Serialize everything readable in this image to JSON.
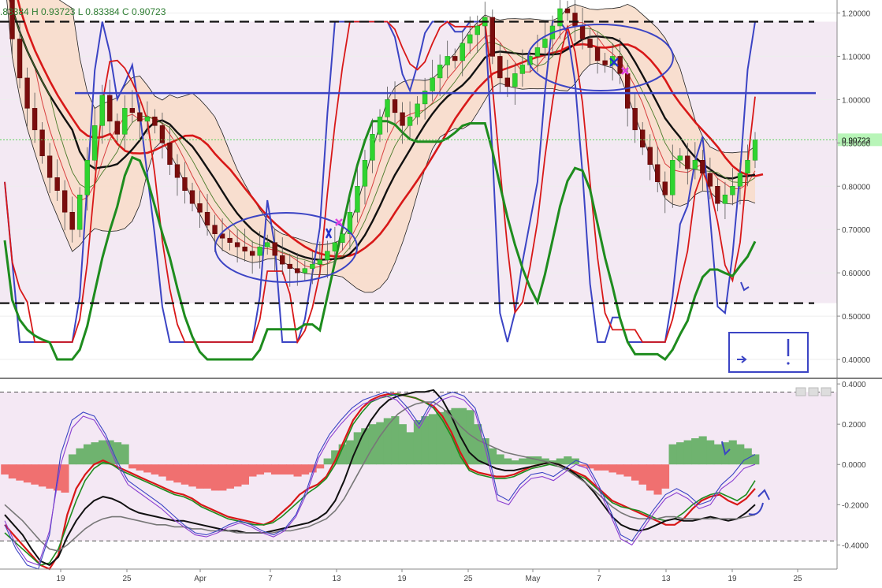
{
  "colors": {
    "up": "#2fd42f",
    "down": "#7a0d0d",
    "band_fill": "#f8dcc8",
    "bg_shade": "#f3e9f3",
    "osc_bg": "#f4e8f4",
    "hist_pos": "#6fb36f",
    "hist_neg": "#f07070",
    "blue_line": "#3b44c4",
    "red_line": "#d81818",
    "green_line": "#1e8c1e",
    "black_line": "#111111",
    "last_price_box": "#b8f5b8",
    "annotation": "#3b44c4"
  },
  "header": {
    "ohlc_text": ".83384  H 0.93723  L 0.83384  C 0.90723"
  },
  "chart_data": [
    {
      "type": "candlestick",
      "title": "",
      "y_range": [
        0.36,
        1.23
      ],
      "y_ticks": [
        "1.20000",
        "1.10000",
        "1.00000",
        "0.90000",
        "0.80000",
        "0.70000",
        "0.60000",
        "0.50000",
        "0.40000"
      ],
      "x_tick_labels": [
        "19",
        "25",
        "Apr",
        "7",
        "13",
        "19",
        "25",
        "May",
        "7",
        "13",
        "19",
        "25"
      ],
      "last_price": 0.90723,
      "last_price_label": "0.90723",
      "horizontal_levels": [
        {
          "style": "dashed",
          "value": 1.18
        },
        {
          "style": "dashed",
          "value": 0.53
        },
        {
          "style": "solid",
          "value": 1.015
        }
      ],
      "closes": [
        1.28,
        1.14,
        1.05,
        0.98,
        0.93,
        0.87,
        0.82,
        0.79,
        0.74,
        0.7,
        0.78,
        0.86,
        0.94,
        1.01,
        0.95,
        0.92,
        0.98,
        0.97,
        0.95,
        0.96,
        0.94,
        0.9,
        0.85,
        0.82,
        0.79,
        0.76,
        0.74,
        0.71,
        0.69,
        0.68,
        0.67,
        0.66,
        0.65,
        0.64,
        0.66,
        0.67,
        0.64,
        0.62,
        0.61,
        0.6,
        0.61,
        0.62,
        0.63,
        0.65,
        0.67,
        0.69,
        0.74,
        0.8,
        0.86,
        0.92,
        0.96,
        1.0,
        0.97,
        0.94,
        0.96,
        0.99,
        1.02,
        1.05,
        1.08,
        1.1,
        1.09,
        1.13,
        1.15,
        1.17,
        1.19,
        1.1,
        1.05,
        1.03,
        1.06,
        1.08,
        1.1,
        1.12,
        1.14,
        1.17,
        1.21,
        1.2,
        1.17,
        1.14,
        1.12,
        1.09,
        1.08,
        1.1,
        1.06,
        0.98,
        0.93,
        0.89,
        0.85,
        0.81,
        0.78,
        0.86,
        0.87,
        0.84,
        0.86,
        0.83,
        0.8,
        0.76,
        0.78,
        0.8,
        0.83,
        0.86,
        0.90723
      ]
    },
    {
      "type": "oscillator",
      "title": "",
      "y_range": [
        -0.52,
        0.42
      ],
      "y_ticks": [
        "0.4000",
        "0.2000",
        "0.0000",
        "-0.2000",
        "-0.4000"
      ],
      "dashed_levels": [
        0.36,
        -0.38
      ],
      "histogram": [
        -0.05,
        -0.07,
        -0.08,
        -0.09,
        -0.1,
        -0.11,
        -0.12,
        -0.13,
        -0.14,
        0.05,
        0.08,
        0.1,
        0.11,
        0.12,
        0.12,
        0.11,
        0.1,
        -0.02,
        -0.03,
        -0.04,
        -0.05,
        -0.06,
        -0.08,
        -0.09,
        -0.1,
        -0.11,
        -0.12,
        -0.12,
        -0.13,
        -0.13,
        -0.12,
        -0.11,
        -0.1,
        -0.06,
        -0.05,
        -0.04,
        -0.05,
        -0.05,
        -0.05,
        -0.06,
        -0.05,
        -0.04,
        -0.02,
        0.03,
        0.07,
        0.1,
        0.12,
        0.16,
        0.18,
        0.2,
        0.21,
        0.23,
        0.24,
        0.2,
        0.16,
        0.22,
        0.24,
        0.25,
        0.26,
        0.27,
        0.28,
        0.28,
        0.27,
        0.2,
        0.13,
        0.08,
        0.05,
        0.03,
        0.02,
        0.03,
        0.04,
        0.04,
        0.03,
        0.02,
        0.03,
        0.04,
        0.03,
        -0.01,
        -0.02,
        -0.03,
        -0.03,
        -0.04,
        -0.05,
        -0.06,
        -0.08,
        -0.1,
        -0.13,
        -0.15,
        -0.12,
        0.1,
        0.11,
        0.12,
        0.13,
        0.14,
        0.12,
        0.1,
        0.11,
        0.12,
        0.1,
        0.08,
        0.05
      ],
      "series": [
        {
          "color": "#d81818",
          "width": 2.2,
          "values": [
            -0.3,
            -0.35,
            -0.4,
            -0.45,
            -0.5,
            -0.52,
            -0.45,
            -0.25,
            -0.12,
            -0.05,
            0.0,
            0.02,
            0.0,
            -0.02,
            -0.04,
            -0.06,
            -0.08,
            -0.1,
            -0.12,
            -0.14,
            -0.15,
            -0.17,
            -0.2,
            -0.22,
            -0.24,
            -0.26,
            -0.27,
            -0.28,
            -0.29,
            -0.3,
            -0.28,
            -0.24,
            -0.2,
            -0.15,
            -0.12,
            -0.1,
            -0.06,
            0.02,
            0.12,
            0.22,
            0.28,
            0.32,
            0.34,
            0.35,
            0.35,
            0.34,
            0.33,
            0.31,
            0.29,
            0.24,
            0.16,
            0.06,
            -0.02,
            -0.04,
            -0.05,
            -0.06,
            -0.06,
            -0.05,
            -0.03,
            -0.01,
            0.0,
            0.01,
            0.0,
            -0.02,
            -0.04,
            -0.06,
            -0.1,
            -0.14,
            -0.18,
            -0.2,
            -0.22,
            -0.24,
            -0.26,
            -0.28,
            -0.3,
            -0.3,
            -0.27,
            -0.22,
            -0.18,
            -0.16,
            -0.15,
            -0.18,
            -0.2,
            -0.17,
            -0.12
          ]
        },
        {
          "color": "#1e8c1e",
          "width": 1.6,
          "values": [
            -0.34,
            -0.38,
            -0.42,
            -0.46,
            -0.5,
            -0.49,
            -0.42,
            -0.3,
            -0.18,
            -0.08,
            -0.02,
            0.01,
            0.0,
            -0.03,
            -0.05,
            -0.07,
            -0.09,
            -0.11,
            -0.13,
            -0.15,
            -0.16,
            -0.18,
            -0.21,
            -0.23,
            -0.25,
            -0.27,
            -0.28,
            -0.29,
            -0.3,
            -0.3,
            -0.29,
            -0.26,
            -0.22,
            -0.18,
            -0.14,
            -0.11,
            -0.07,
            0.0,
            0.1,
            0.2,
            0.26,
            0.31,
            0.33,
            0.34,
            0.35,
            0.34,
            0.33,
            0.31,
            0.28,
            0.22,
            0.14,
            0.04,
            -0.03,
            -0.05,
            -0.06,
            -0.07,
            -0.07,
            -0.06,
            -0.04,
            -0.02,
            -0.01,
            0.0,
            -0.01,
            -0.03,
            -0.05,
            -0.07,
            -0.11,
            -0.15,
            -0.19,
            -0.21,
            -0.22,
            -0.23,
            -0.25,
            -0.27,
            -0.28,
            -0.27,
            -0.24,
            -0.2,
            -0.17,
            -0.15,
            -0.14,
            -0.16,
            -0.18,
            -0.15,
            -0.08
          ]
        },
        {
          "color": "#111111",
          "width": 2.0,
          "values": [
            -0.25,
            -0.3,
            -0.35,
            -0.42,
            -0.48,
            -0.5,
            -0.46,
            -0.36,
            -0.28,
            -0.22,
            -0.18,
            -0.16,
            -0.17,
            -0.19,
            -0.22,
            -0.24,
            -0.25,
            -0.26,
            -0.27,
            -0.28,
            -0.28,
            -0.29,
            -0.3,
            -0.31,
            -0.32,
            -0.33,
            -0.33,
            -0.34,
            -0.34,
            -0.34,
            -0.33,
            -0.32,
            -0.31,
            -0.3,
            -0.29,
            -0.27,
            -0.24,
            -0.18,
            -0.08,
            0.04,
            0.14,
            0.22,
            0.28,
            0.32,
            0.34,
            0.35,
            0.36,
            0.36,
            0.37,
            0.32,
            0.24,
            0.14,
            0.06,
            0.02,
            0.0,
            -0.02,
            -0.03,
            -0.03,
            -0.02,
            -0.01,
            0.0,
            0.01,
            0.0,
            -0.02,
            -0.05,
            -0.09,
            -0.14,
            -0.2,
            -0.26,
            -0.3,
            -0.32,
            -0.33,
            -0.32,
            -0.3,
            -0.28,
            -0.27,
            -0.28,
            -0.28,
            -0.27,
            -0.26,
            -0.27,
            -0.28,
            -0.27,
            -0.24,
            -0.2
          ]
        },
        {
          "color": "#777777",
          "width": 1.6,
          "values": [
            -0.2,
            -0.24,
            -0.28,
            -0.33,
            -0.38,
            -0.42,
            -0.43,
            -0.4,
            -0.36,
            -0.32,
            -0.29,
            -0.27,
            -0.26,
            -0.26,
            -0.27,
            -0.28,
            -0.29,
            -0.3,
            -0.3,
            -0.31,
            -0.31,
            -0.32,
            -0.32,
            -0.33,
            -0.33,
            -0.33,
            -0.34,
            -0.34,
            -0.34,
            -0.34,
            -0.34,
            -0.33,
            -0.33,
            -0.32,
            -0.31,
            -0.29,
            -0.27,
            -0.23,
            -0.17,
            -0.09,
            -0.01,
            0.07,
            0.14,
            0.2,
            0.25,
            0.28,
            0.3,
            0.31,
            0.31,
            0.28,
            0.24,
            0.19,
            0.15,
            0.12,
            0.1,
            0.08,
            0.06,
            0.05,
            0.04,
            0.03,
            0.02,
            0.01,
            -0.01,
            -0.03,
            -0.06,
            -0.09,
            -0.13,
            -0.17,
            -0.21,
            -0.24,
            -0.26,
            -0.27,
            -0.27,
            -0.27,
            -0.26,
            -0.26,
            -0.27,
            -0.27,
            -0.27,
            -0.27,
            -0.27,
            -0.27,
            -0.27,
            -0.26,
            -0.25
          ]
        },
        {
          "color": "#3b44c4",
          "width": 1.1,
          "values": [
            -0.3,
            -0.42,
            -0.5,
            -0.52,
            -0.35,
            0.05,
            0.22,
            0.26,
            0.24,
            0.15,
            0.02,
            -0.08,
            -0.12,
            -0.16,
            -0.2,
            -0.25,
            -0.3,
            -0.34,
            -0.35,
            -0.33,
            -0.3,
            -0.28,
            -0.3,
            -0.33,
            -0.35,
            -0.32,
            -0.25,
            -0.12,
            0.05,
            0.15,
            0.22,
            0.28,
            0.32,
            0.34,
            0.36,
            0.34,
            0.28,
            0.2,
            0.3,
            0.34,
            0.36,
            0.34,
            0.28,
            0.1,
            -0.15,
            -0.18,
            -0.1,
            -0.05,
            -0.04,
            -0.06,
            -0.02,
            0.02,
            0.0,
            -0.1,
            -0.22,
            -0.35,
            -0.38,
            -0.3,
            -0.22,
            -0.15,
            -0.12,
            -0.15,
            -0.2,
            -0.18,
            -0.1,
            -0.05,
            0.02,
            0.05
          ]
        },
        {
          "color": "#8a3fd1",
          "width": 1.1,
          "values": [
            -0.28,
            -0.4,
            -0.48,
            -0.5,
            -0.33,
            0.0,
            0.18,
            0.24,
            0.22,
            0.13,
            0.0,
            -0.1,
            -0.14,
            -0.18,
            -0.22,
            -0.27,
            -0.31,
            -0.35,
            -0.36,
            -0.34,
            -0.31,
            -0.29,
            -0.31,
            -0.34,
            -0.36,
            -0.33,
            -0.26,
            -0.14,
            0.03,
            0.13,
            0.2,
            0.26,
            0.3,
            0.32,
            0.34,
            0.32,
            0.26,
            0.18,
            0.28,
            0.32,
            0.34,
            0.32,
            0.26,
            0.06,
            -0.18,
            -0.2,
            -0.12,
            -0.07,
            -0.06,
            -0.08,
            -0.04,
            0.0,
            -0.02,
            -0.12,
            -0.24,
            -0.37,
            -0.4,
            -0.32,
            -0.24,
            -0.17,
            -0.14,
            -0.17,
            -0.22,
            -0.2,
            -0.12,
            -0.08,
            -0.02,
            0.0
          ]
        }
      ]
    }
  ]
}
